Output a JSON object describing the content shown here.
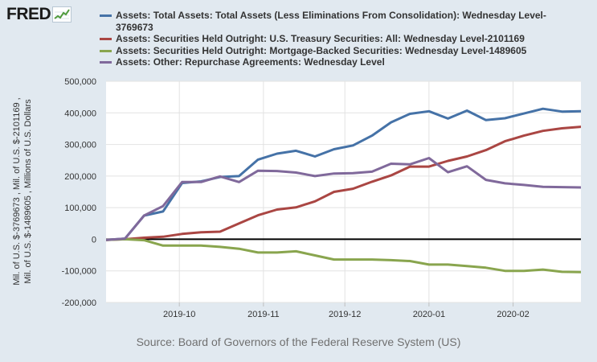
{
  "logo": {
    "text": "FRED",
    "icon": "trend-line-chart-icon"
  },
  "source": "Source: Board of Governors of the Federal Reserve System (US)",
  "chart_data": {
    "type": "line",
    "ylabel": "Mil. of U.S. $-3769673 , Mil. of U.S. $-2101169 , Mil. of U.S. $-1489605 , Millions of U.S. Dollars",
    "ylim": [
      -200000,
      500000
    ],
    "yticks": [
      -200000,
      -100000,
      0,
      100000,
      200000,
      300000,
      400000,
      500000
    ],
    "ytick_labels": [
      "-200,000",
      "-100,000",
      "0",
      "100,000",
      "200,000",
      "300,000",
      "400,000",
      "500,000"
    ],
    "xlim": [
      "2019-09-04",
      "2020-02-26"
    ],
    "xticks": [
      "2019-10-01",
      "2019-11-01",
      "2019-12-01",
      "2020-01-01",
      "2020-02-01"
    ],
    "xtick_labels": [
      "2019-10",
      "2019-11",
      "2019-12",
      "2020-01",
      "2020-02"
    ],
    "grid": true,
    "legend_position": "top",
    "zero_line": true,
    "x": [
      "2019-09-04",
      "2019-09-11",
      "2019-09-18",
      "2019-09-25",
      "2019-10-02",
      "2019-10-09",
      "2019-10-16",
      "2019-10-23",
      "2019-10-30",
      "2019-11-06",
      "2019-11-13",
      "2019-11-20",
      "2019-11-27",
      "2019-12-04",
      "2019-12-11",
      "2019-12-18",
      "2019-12-25",
      "2020-01-01",
      "2020-01-08",
      "2020-01-15",
      "2020-01-22",
      "2020-01-29",
      "2020-02-05",
      "2020-02-12",
      "2020-02-19",
      "2020-02-26"
    ],
    "series": [
      {
        "name": "Assets: Total Assets: Total Assets (Less Eliminations From Consolidation): Wednesday Level-3769673",
        "color": "#4572a7",
        "values": [
          -2000,
          2000,
          75000,
          88000,
          178000,
          183000,
          197000,
          200000,
          252000,
          271000,
          280000,
          262000,
          285000,
          297000,
          328000,
          370000,
          397000,
          405000,
          382000,
          407000,
          377000,
          383000,
          398000,
          413000,
          404000,
          405000
        ]
      },
      {
        "name": "Assets: Securities Held Outright: U.S. Treasury Securities: All: Wednesday Level-2101169",
        "color": "#aa4643",
        "values": [
          -2000,
          0,
          5000,
          8000,
          17000,
          22000,
          24000,
          50000,
          76000,
          94000,
          101000,
          120000,
          150000,
          160000,
          182000,
          202000,
          230000,
          230000,
          248000,
          262000,
          282000,
          310000,
          328000,
          343000,
          351000,
          356000
        ]
      },
      {
        "name": "Assets: Securities Held Outright: Mortgage-Backed Securities: Wednesday Level-1489605",
        "color": "#89a54e",
        "values": [
          -2000,
          0,
          -3000,
          -20000,
          -20000,
          -20000,
          -24000,
          -30000,
          -42000,
          -42000,
          -38000,
          -51000,
          -64000,
          -64000,
          -64000,
          -66000,
          -69000,
          -80000,
          -80000,
          -85000,
          -90000,
          -100000,
          -100000,
          -96000,
          -103000,
          -104000
        ]
      },
      {
        "name": "Assets: Other: Repurchase Agreements: Wednesday Level",
        "color": "#80699b",
        "values": [
          -2000,
          2000,
          75000,
          105000,
          181000,
          181000,
          199000,
          181000,
          217000,
          216000,
          211000,
          200000,
          208000,
          209000,
          214000,
          239000,
          237000,
          257000,
          212000,
          231000,
          188000,
          177000,
          172000,
          166000,
          165000,
          164000
        ]
      }
    ]
  }
}
